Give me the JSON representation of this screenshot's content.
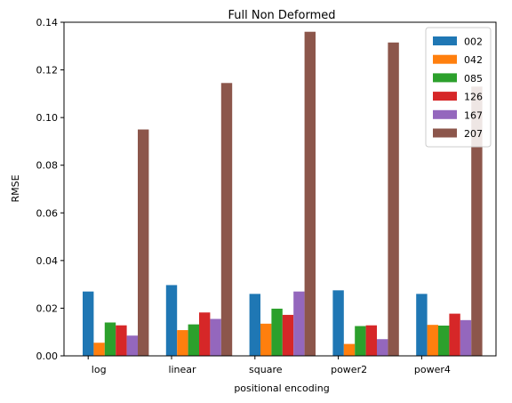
{
  "chart_data": {
    "type": "bar",
    "title": "Full Non Deformed",
    "xlabel": "positional encoding",
    "ylabel": "RMSE",
    "categories": [
      "log",
      "linear",
      "square",
      "power2",
      "power4"
    ],
    "ylim": [
      0,
      0.14
    ],
    "yticks": [
      "0.00",
      "0.02",
      "0.04",
      "0.06",
      "0.08",
      "0.10",
      "0.12",
      "0.14"
    ],
    "grid": false,
    "legend_position": "top-right",
    "series": [
      {
        "name": "002",
        "color": "#1f77b4",
        "values": [
          0.027,
          0.0297,
          0.026,
          0.0275,
          0.026
        ]
      },
      {
        "name": "042",
        "color": "#ff7f0e",
        "values": [
          0.0055,
          0.0108,
          0.0135,
          0.005,
          0.013
        ]
      },
      {
        "name": "085",
        "color": "#2ca02c",
        "values": [
          0.014,
          0.0132,
          0.0198,
          0.0125,
          0.0127
        ]
      },
      {
        "name": "126",
        "color": "#d62728",
        "values": [
          0.0128,
          0.0182,
          0.0172,
          0.0128,
          0.0177
        ]
      },
      {
        "name": "167",
        "color": "#9467bd",
        "values": [
          0.0085,
          0.0155,
          0.027,
          0.007,
          0.015
        ]
      },
      {
        "name": "207",
        "color": "#8c564b",
        "values": [
          0.095,
          0.1145,
          0.136,
          0.1315,
          0.113
        ]
      }
    ]
  }
}
